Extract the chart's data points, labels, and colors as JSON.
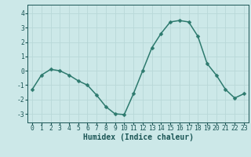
{
  "x": [
    0,
    1,
    2,
    3,
    4,
    5,
    6,
    7,
    8,
    9,
    10,
    11,
    12,
    13,
    14,
    15,
    16,
    17,
    18,
    19,
    20,
    21,
    22,
    23
  ],
  "y": [
    -1.3,
    -0.3,
    0.1,
    0.0,
    -0.3,
    -0.7,
    -1.0,
    -1.7,
    -2.5,
    -3.0,
    -3.05,
    -1.6,
    0.0,
    1.6,
    2.6,
    3.4,
    3.5,
    3.4,
    2.4,
    0.5,
    -0.3,
    -1.3,
    -1.9,
    -1.6
  ],
  "line_color": "#2d7a6e",
  "marker": "D",
  "marker_size": 2.5,
  "bg_color": "#cce8e8",
  "grid_color": "#b8d8d8",
  "xlabel": "Humidex (Indice chaleur)",
  "ylim": [
    -3.6,
    4.6
  ],
  "xlim": [
    -0.5,
    23.5
  ],
  "yticks": [
    -3,
    -2,
    -1,
    0,
    1,
    2,
    3,
    4
  ],
  "xticks": [
    0,
    1,
    2,
    3,
    4,
    5,
    6,
    7,
    8,
    9,
    10,
    11,
    12,
    13,
    14,
    15,
    16,
    17,
    18,
    19,
    20,
    21,
    22,
    23
  ],
  "tick_color": "#1a5555",
  "label_color": "#1a5555",
  "font_size_label": 7.0,
  "font_size_tick": 5.8,
  "line_width": 1.1
}
